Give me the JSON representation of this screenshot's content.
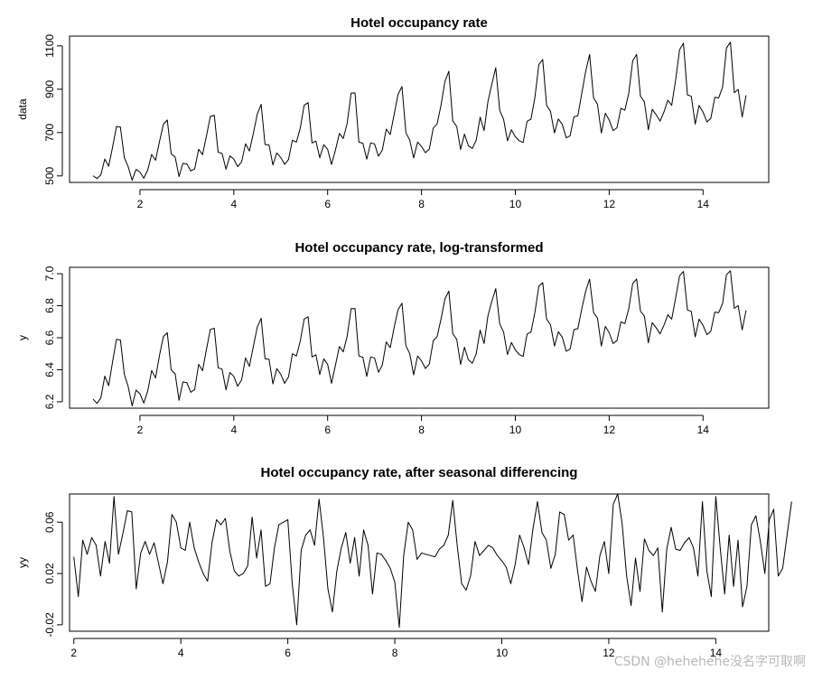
{
  "watermark": "CSDN @hehehehe没名字可取啊",
  "chart_data": [
    {
      "type": "line",
      "title": "Hotel occupancy rate",
      "xlabel": "",
      "ylabel": "data",
      "xlim": [
        0.5,
        15.4
      ],
      "ylim": [
        470,
        1145
      ],
      "xticks": [
        2,
        4,
        6,
        8,
        10,
        12,
        14
      ],
      "yticks": [
        500,
        700,
        900,
        1100
      ],
      "x_start": 1,
      "x_step": 0.083333,
      "series": [
        {
          "values": [
            501,
            488,
            504,
            578,
            545,
            632,
            728,
            725,
            585,
            542,
            480,
            530,
            518,
            489,
            528,
            599,
            572,
            659,
            739,
            758,
            602,
            587,
            497,
            558,
            555,
            523,
            532,
            623,
            598,
            683,
            774,
            780,
            609,
            604,
            531,
            592,
            578,
            543,
            565,
            648,
            615,
            697,
            785,
            830,
            645,
            643,
            551,
            606,
            585,
            553,
            576,
            665,
            656,
            720,
            826,
            838,
            652,
            661,
            584,
            644,
            623,
            553,
            620,
            696,
            673,
            742,
            882,
            883,
            656,
            651,
            577,
            652,
            648,
            591,
            620,
            716,
            691,
            783,
            876,
            912,
            700,
            665,
            583,
            656,
            636,
            607,
            624,
            721,
            740,
            826,
            937,
            983,
            754,
            728,
            622,
            693,
            639,
            627,
            665,
            771,
            709,
            844,
            924,
            999,
            802,
            761,
            662,
            713,
            681,
            662,
            654,
            752,
            762,
            860,
            1014,
            1037,
            826,
            798,
            698,
            763,
            738,
            676,
            685,
            773,
            778,
            882,
            983,
            1060,
            860,
            831,
            698,
            789,
            758,
            709,
            722,
            812,
            803,
            880,
            1031,
            1061,
            868,
            842,
            713,
            807,
            783,
            753,
            795,
            849,
            826,
            944,
            1082,
            1112,
            874,
            867,
            739,
            825,
            794,
            749,
            766,
            863,
            860,
            910,
            1090,
            1117,
            884,
            899,
            772,
            872
          ]
        }
      ]
    },
    {
      "type": "line",
      "title": "Hotel occupancy rate, log-transformed",
      "xlabel": "",
      "ylabel": "y",
      "xlim": [
        0.5,
        15.4
      ],
      "ylim": [
        6.16,
        7.04
      ],
      "xticks": [
        2,
        4,
        6,
        8,
        10,
        12,
        14
      ],
      "yticks": [
        6.2,
        6.4,
        6.6,
        6.8,
        7.0
      ],
      "ytick_labels": [
        "6.2",
        "6.4",
        "6.6",
        "6.8",
        "7.0"
      ],
      "x_start": 1,
      "x_step": 0.083333,
      "series": [
        {
          "values": [
            6.217,
            6.19,
            6.223,
            6.36,
            6.301,
            6.449,
            6.59,
            6.586,
            6.372,
            6.295,
            6.174,
            6.273,
            6.25,
            6.192,
            6.269,
            6.395,
            6.349,
            6.491,
            6.608,
            6.631,
            6.4,
            6.375,
            6.209,
            6.324,
            6.319,
            6.259,
            6.277,
            6.434,
            6.394,
            6.526,
            6.652,
            6.659,
            6.412,
            6.404,
            6.275,
            6.383,
            6.359,
            6.297,
            6.337,
            6.474,
            6.421,
            6.547,
            6.666,
            6.722,
            6.469,
            6.466,
            6.312,
            6.407,
            6.372,
            6.315,
            6.356,
            6.5,
            6.486,
            6.579,
            6.717,
            6.731,
            6.48,
            6.494,
            6.37,
            6.468,
            6.434,
            6.315,
            6.43,
            6.545,
            6.512,
            6.609,
            6.782,
            6.783,
            6.486,
            6.478,
            6.358,
            6.48,
            6.474,
            6.384,
            6.43,
            6.574,
            6.538,
            6.663,
            6.775,
            6.816,
            6.551,
            6.5,
            6.368,
            6.486,
            6.455,
            6.408,
            6.436,
            6.581,
            6.607,
            6.716,
            6.843,
            6.891,
            6.626,
            6.59,
            6.433,
            6.541,
            6.462,
            6.441,
            6.5,
            6.648,
            6.564,
            6.738,
            6.829,
            6.907,
            6.687,
            6.635,
            6.495,
            6.57,
            6.524,
            6.495,
            6.483,
            6.623,
            6.636,
            6.757,
            6.922,
            6.944,
            6.716,
            6.682,
            6.548,
            6.637,
            6.604,
            6.516,
            6.529,
            6.651,
            6.657,
            6.782,
            6.891,
            6.966,
            6.757,
            6.723,
            6.548,
            6.671,
            6.631,
            6.564,
            6.582,
            6.7,
            6.688,
            6.78,
            6.938,
            6.967,
            6.766,
            6.736,
            6.569,
            6.694,
            6.663,
            6.624,
            6.678,
            6.744,
            6.716,
            6.85,
            6.987,
            7.014,
            6.773,
            6.765,
            6.605,
            6.716,
            6.677,
            6.619,
            6.641,
            6.76,
            6.757,
            6.813,
            6.994,
            7.018,
            6.784,
            6.801,
            6.649,
            6.771
          ]
        }
      ]
    },
    {
      "type": "line",
      "title": "Hotel occupancy rate, after seasonal differencing",
      "xlabel": "",
      "ylabel": "yy",
      "xlim": [
        1.92,
        14.99
      ],
      "ylim": [
        -0.025,
        0.082
      ],
      "xticks": [
        2,
        4,
        6,
        8,
        10,
        12,
        14
      ],
      "yticks": [
        -0.02,
        0.02,
        0.06
      ],
      "ytick_labels": [
        "-0.02",
        "0.02",
        "0.06"
      ],
      "x_start": 2,
      "x_step": 0.083333,
      "series": [
        {
          "values": [
            0.033,
            0.002,
            0.046,
            0.035,
            0.048,
            0.042,
            0.018,
            0.045,
            0.028,
            0.08,
            0.035,
            0.051,
            0.069,
            0.068,
            0.008,
            0.036,
            0.045,
            0.035,
            0.044,
            0.028,
            0.012,
            0.029,
            0.066,
            0.06,
            0.04,
            0.038,
            0.06,
            0.04,
            0.029,
            0.02,
            0.014,
            0.044,
            0.062,
            0.058,
            0.063,
            0.037,
            0.022,
            0.018,
            0.02,
            0.026,
            0.064,
            0.032,
            0.054,
            0.01,
            0.012,
            0.04,
            0.058,
            0.06,
            0.062,
            0.012,
            -0.02,
            0.038,
            0.05,
            0.054,
            0.042,
            0.078,
            0.048,
            0.008,
            -0.01,
            0.022,
            0.04,
            0.052,
            0.028,
            0.048,
            0.018,
            0.054,
            0.042,
            0.004,
            0.036,
            0.035,
            0.03,
            0.024,
            0.013,
            -0.022,
            0.034,
            0.06,
            0.054,
            0.031,
            0.036,
            0.035,
            0.034,
            0.033,
            0.039,
            0.042,
            0.05,
            0.077,
            0.042,
            0.012,
            0.007,
            0.018,
            0.045,
            0.034,
            0.038,
            0.042,
            0.04,
            0.034,
            0.03,
            0.025,
            0.012,
            0.027,
            0.05,
            0.04,
            0.027,
            0.055,
            0.076,
            0.052,
            0.046,
            0.024,
            0.035,
            0.068,
            0.066,
            0.046,
            0.05,
            0.022,
            -0.002,
            0.025,
            0.014,
            0.006,
            0.034,
            0.045,
            0.02,
            0.074,
            0.082,
            0.059,
            0.018,
            -0.005,
            0.032,
            0.006,
            0.047,
            0.038,
            0.034,
            0.04,
            -0.01,
            0.039,
            0.056,
            0.039,
            0.038,
            0.044,
            0.048,
            0.04,
            0.018,
            0.076,
            0.022,
            0.002,
            0.08,
            0.04,
            0.004,
            0.05,
            0.01,
            0.046,
            -0.006,
            0.01,
            0.058,
            0.065,
            0.045,
            0.02,
            0.062,
            0.07,
            0.018,
            0.024,
            0.05,
            0.076
          ]
        }
      ]
    }
  ]
}
